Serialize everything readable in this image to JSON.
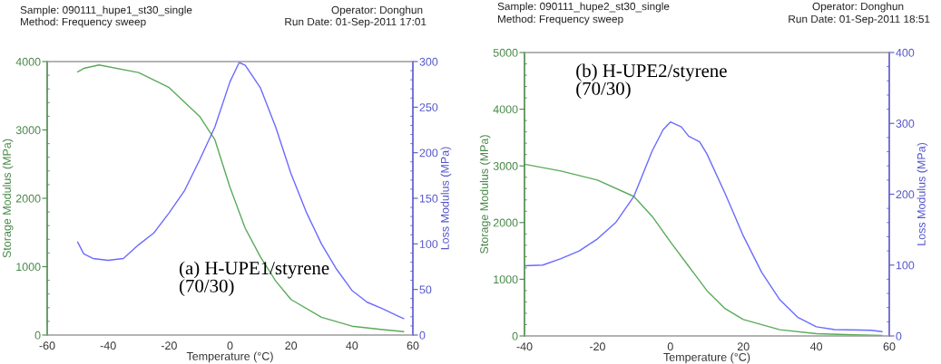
{
  "chart_data": [
    {
      "type": "line",
      "xlabel": "Temperature (°C)",
      "ylabel": "Storage Modulus (MPa)",
      "y2label": "Loss Modulus (MPa)",
      "annotations": [
        "Sample: 090111_hupe1_st30_single",
        "Method: Frequency sweep",
        "Operator: Donghun",
        "Run Date: 01-Sep-2011 17:01",
        "(a) H-UPE1/styrene\n(70/30)"
      ],
      "xlim": [
        -60,
        60
      ],
      "xticks": [
        -60,
        -40,
        -20,
        0,
        20,
        40,
        60
      ],
      "ylim": [
        0,
        4000
      ],
      "yticks": [
        0,
        1000,
        2000,
        3000,
        4000
      ],
      "y2lim": [
        0,
        300
      ],
      "y2ticks": [
        0,
        50,
        100,
        150,
        200,
        250,
        300
      ],
      "grid": false,
      "legend": false,
      "series": [
        {
          "color": "#5aaa5a",
          "x": [
            -50,
            -48,
            -43,
            -30,
            -20,
            -10,
            -5,
            0,
            5,
            10,
            15,
            20,
            30,
            40,
            50,
            57
          ],
          "values": [
            3850,
            3900,
            3950,
            3840,
            3620,
            3200,
            2860,
            2160,
            1560,
            1140,
            790,
            520,
            260,
            130,
            80,
            50
          ]
        },
        {
          "color": "#6a6aff",
          "axis": "y2",
          "x": [
            -50,
            -48,
            -45,
            -40,
            -35,
            -30,
            -25,
            -20,
            -15,
            -10,
            -5,
            0,
            3,
            5,
            10,
            15,
            20,
            25,
            30,
            35,
            40,
            45,
            50,
            55,
            57
          ],
          "values": [
            102,
            89,
            84,
            82,
            84,
            99,
            112,
            134,
            158,
            192,
            228,
            278,
            299,
            296,
            271,
            228,
            177,
            135,
            100,
            72,
            49,
            36,
            29,
            21,
            18
          ]
        }
      ]
    },
    {
      "type": "line",
      "xlabel": "Temperature (°C)",
      "ylabel": "Storage Modulus (MPa)",
      "y2label": "Loss Modulus (MPa)",
      "annotations": [
        "Sample: 090111_hupe2_st30_single",
        "Method: Frequency sweep",
        "Operator: Donghun",
        "Run Date: 01-Sep-2011 18:51",
        "(b) H-UPE2/styrene\n(70/30)"
      ],
      "xlim": [
        -40,
        60
      ],
      "xticks": [
        -40,
        -20,
        0,
        20,
        40,
        60
      ],
      "ylim": [
        0,
        5000
      ],
      "yticks": [
        0,
        1000,
        2000,
        3000,
        4000,
        5000
      ],
      "y2lim": [
        0,
        400
      ],
      "y2ticks": [
        0,
        100,
        200,
        300,
        400
      ],
      "grid": false,
      "legend": false,
      "series": [
        {
          "color": "#5aaa5a",
          "x": [
            -40,
            -30,
            -20,
            -10,
            -5,
            0,
            5,
            10,
            15,
            20,
            30,
            40,
            50,
            58
          ],
          "values": [
            3030,
            2910,
            2750,
            2460,
            2110,
            1660,
            1230,
            800,
            480,
            290,
            110,
            40,
            20,
            10
          ]
        },
        {
          "color": "#6a6aff",
          "axis": "y2",
          "x": [
            -40,
            -35,
            -30,
            -25,
            -20,
            -15,
            -10,
            -5,
            -2,
            0,
            3,
            5,
            8,
            10,
            15,
            20,
            25,
            30,
            35,
            40,
            45,
            55,
            58
          ],
          "values": [
            99,
            100,
            109,
            120,
            137,
            160,
            197,
            261,
            291,
            302,
            295,
            282,
            274,
            257,
            201,
            141,
            90,
            51,
            26,
            13,
            9,
            8,
            6
          ]
        }
      ]
    }
  ]
}
